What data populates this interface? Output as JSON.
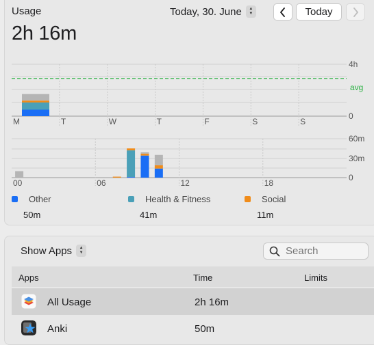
{
  "header": {
    "title": "Usage",
    "total": "2h 16m",
    "date_label": "Today, 30. June",
    "today_button": "Today"
  },
  "week_chart": {
    "y_ticks": [
      "4h",
      "avg",
      "0"
    ],
    "days": [
      "M",
      "T",
      "W",
      "T",
      "F",
      "S",
      "S"
    ]
  },
  "day_chart": {
    "y_ticks": [
      "60m",
      "30m",
      "0"
    ],
    "hours": [
      "00",
      "06",
      "12",
      "18"
    ]
  },
  "legend": [
    {
      "name": "Other",
      "value": "50m",
      "color": "#1a6ef5"
    },
    {
      "name": "Health & Fitness",
      "value": "41m",
      "color": "#4aa0b8"
    },
    {
      "name": "Social",
      "value": "11m",
      "color": "#f08c1a"
    }
  ],
  "apps_panel": {
    "filter_label": "Show Apps",
    "search_placeholder": "Search",
    "columns": {
      "apps": "Apps",
      "time": "Time",
      "limits": "Limits"
    },
    "rows": [
      {
        "name": "All Usage",
        "time": "2h 16m",
        "icon": "stack-icon"
      },
      {
        "name": "Anki",
        "time": "50m",
        "icon": "anki-star-icon"
      }
    ]
  },
  "chart_data": [
    {
      "type": "bar",
      "categories": [
        "M",
        "T",
        "W",
        "T",
        "F",
        "S",
        "S"
      ],
      "ylim": [
        0,
        4
      ],
      "series": [
        {
          "values": [
            0.5,
            0,
            0,
            0,
            0,
            0,
            0
          ],
          "color": "#1a6ef5"
        },
        {
          "values": [
            0.55,
            0,
            0,
            0,
            0,
            0,
            0
          ],
          "color": "#4aa0b8"
        },
        {
          "values": [
            0.15,
            0,
            0,
            0,
            0,
            0,
            0
          ],
          "color": "#f08c1a"
        },
        {
          "values": [
            0.5,
            0,
            0,
            0,
            0,
            0,
            0
          ],
          "color": "#b5b5b5"
        }
      ],
      "average": 2.9
    },
    {
      "type": "bar",
      "x_range": [
        0,
        24
      ],
      "ylim": [
        0,
        60
      ],
      "bars": [
        {
          "x": 0.25,
          "segments": [
            0,
            0,
            0,
            10
          ]
        },
        {
          "x": 7.25,
          "segments": [
            0,
            0,
            1.5,
            0
          ]
        },
        {
          "x": 8.25,
          "segments": [
            1,
            41,
            3,
            0
          ]
        },
        {
          "x": 9.25,
          "segments": [
            34,
            0,
            3,
            2
          ]
        },
        {
          "x": 10.25,
          "segments": [
            14,
            0,
            5,
            16
          ]
        }
      ],
      "segment_colors": [
        "#1a6ef5",
        "#4aa0b8",
        "#f08c1a",
        "#b5b5b5"
      ]
    }
  ]
}
